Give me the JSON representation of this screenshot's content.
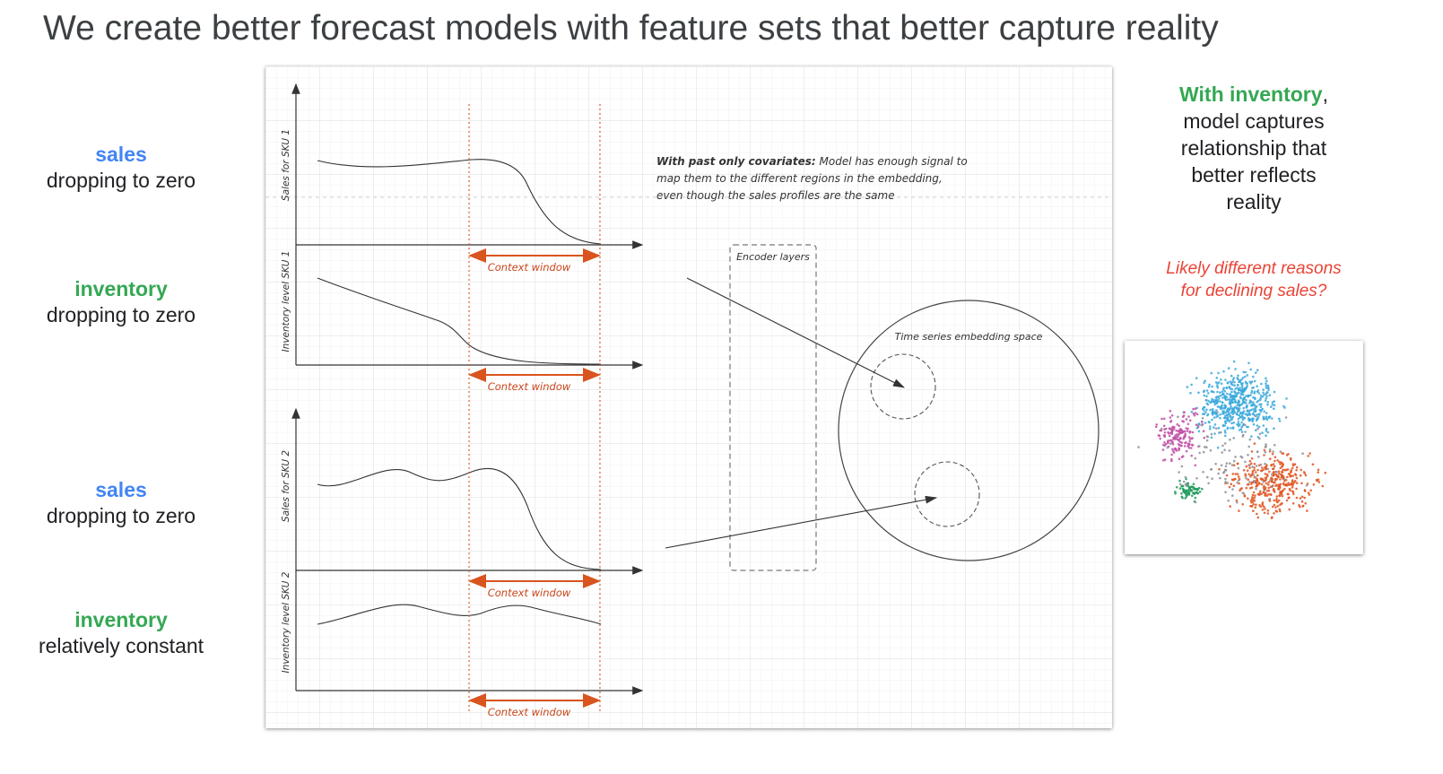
{
  "title": "We create better forecast models with feature sets that better capture reality",
  "left_labels": [
    {
      "keyword": "sales",
      "text": "dropping to zero",
      "color": "#4285f4"
    },
    {
      "keyword": "inventory",
      "text": "dropping to zero",
      "color": "#34a853"
    },
    {
      "keyword": "sales",
      "text": "dropping to zero",
      "color": "#4285f4"
    },
    {
      "keyword": "inventory",
      "text": "relatively constant",
      "color": "#34a853"
    }
  ],
  "diagram": {
    "y_labels": [
      "Sales for SKU 1",
      "Inventory level SKU 1",
      "Sales for SKU 2",
      "Inventory level SKU 2"
    ],
    "context_window": "Context window",
    "note_bold": "With past only covariates:",
    "note_lines": [
      " Model has enough signal to",
      "map them to the different regions in the embedding,",
      "even though the sales profiles are the same"
    ],
    "encoder": "Encoder layers",
    "embedding": "Time series embedding space",
    "accent_color": "#d9541e"
  },
  "right_note": {
    "keyword": "With inventory",
    "comma": ",",
    "lines": [
      "model captures",
      "relationship that",
      "better reflects",
      "reality"
    ]
  },
  "red_note": {
    "lines": [
      "Likely different reasons",
      "for declining sales?"
    ],
    "color": "#ea4335"
  },
  "scatter_colors": [
    "#3aa8dc",
    "#e0531f",
    "#c04fa6",
    "#1f9a5a",
    "#8f8f9a"
  ]
}
